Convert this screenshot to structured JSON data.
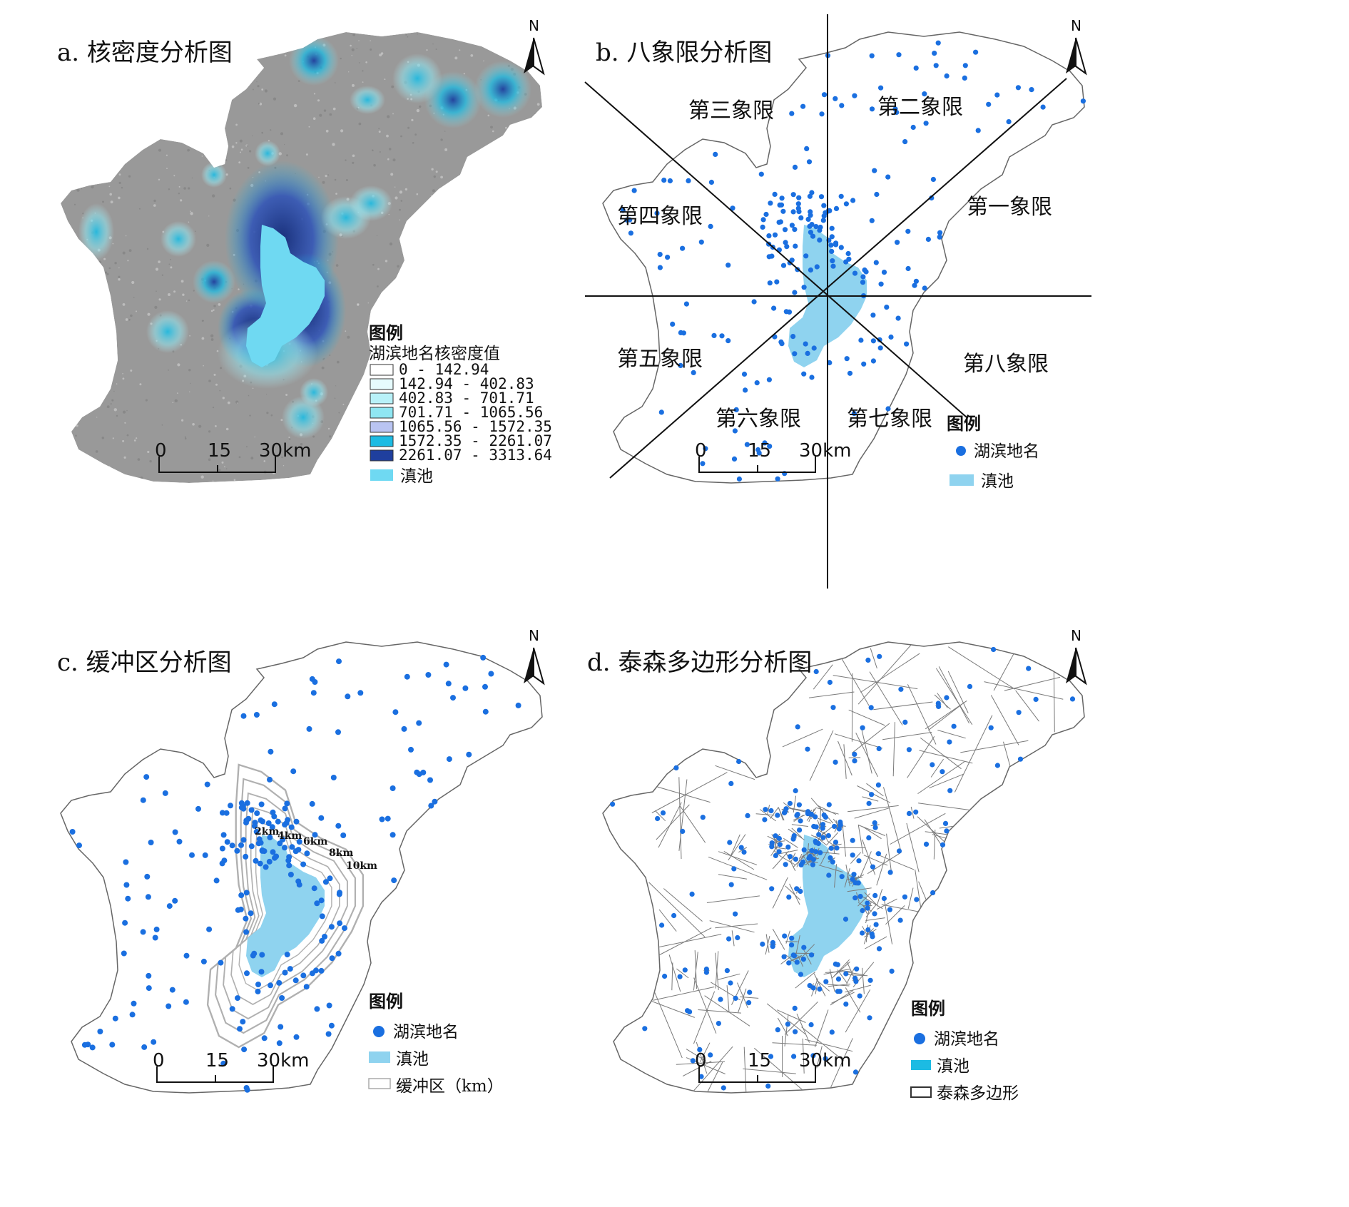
{
  "panels": {
    "a": {
      "title": "a. 核密度分析图",
      "legend_title": "图例",
      "legend_subtitle": "湖滨地名核密度值",
      "classes": [
        {
          "label": "0  -  142.94",
          "color": "#ffffff"
        },
        {
          "label": "142.94  -  402.83",
          "color": "#e6fbfd"
        },
        {
          "label": "402.83  -  701.71",
          "color": "#b8f1f8"
        },
        {
          "label": "701.71  -  1065.56",
          "color": "#8fe6f2"
        },
        {
          "label": "1065.56  -  1572.35",
          "color": "#b9c4f2"
        },
        {
          "label": "1572.35  -  2261.07",
          "color": "#1cbbe3"
        },
        {
          "label": "2261.07  -  3313.64",
          "color": "#1f3f9e"
        }
      ],
      "lake_label": "滇池",
      "lake_color": "#6fd9f2",
      "scale": {
        "ticks": [
          "0",
          "15",
          "30km"
        ]
      },
      "north": "N"
    },
    "b": {
      "title": "b. 八象限分析图",
      "quadrants": [
        "第一象限",
        "第二象限",
        "第三象限",
        "第四象限",
        "第五象限",
        "第六象限",
        "第七象限",
        "第八象限"
      ],
      "legend_title": "图例",
      "legend_points": "湖滨地名",
      "legend_lake": "滇池",
      "scale": {
        "ticks": [
          "0",
          "15",
          "30km"
        ]
      },
      "north": "N"
    },
    "c": {
      "title": "c. 缓冲区分析图",
      "buffer_labels": [
        "2km",
        "4km",
        "6km",
        "8km",
        "10km"
      ],
      "legend_title": "图例",
      "legend_points": "湖滨地名",
      "legend_lake": "滇池",
      "legend_buffer": "缓冲区（km）",
      "scale": {
        "ticks": [
          "0",
          "15",
          "30km"
        ]
      },
      "north": "N"
    },
    "d": {
      "title": "d. 泰森多边形分析图",
      "legend_title": "图例",
      "legend_points": "湖滨地名",
      "legend_lake": "滇池",
      "legend_polygon": "泰森多边形",
      "scale": {
        "ticks": [
          "0",
          "15",
          "30km"
        ]
      },
      "north": "N"
    }
  },
  "colors": {
    "point": "#1a6fe0",
    "lake": "#8fd3ef",
    "boundary": "#666666",
    "gray_fill": "#9a9a9a"
  }
}
